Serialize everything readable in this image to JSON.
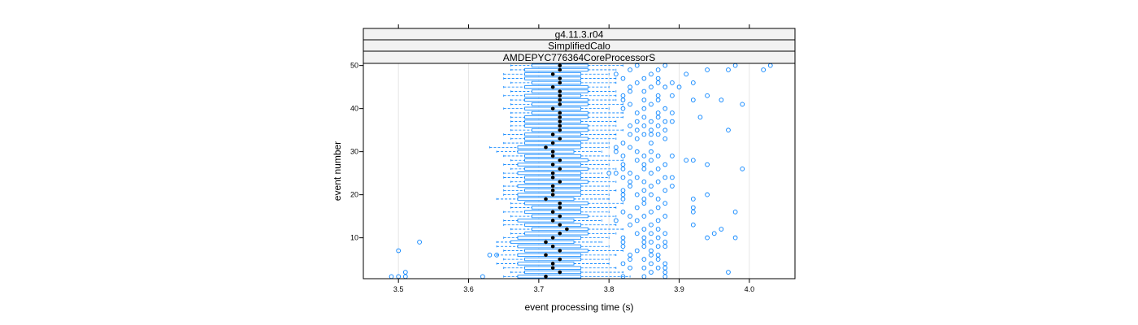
{
  "chart_data": {
    "type": "violin-boxplot",
    "strips": [
      "g4.11.3.r04",
      "SimplifiedCalo",
      "AMDEPYC776364CoreProcessorS"
    ],
    "xlabel": "event processing time (s)",
    "ylabel": "event number",
    "xlim": [
      3.45,
      4.065
    ],
    "ylim": [
      0.5,
      50.5
    ],
    "x_ticks": [
      3.5,
      3.6,
      3.7,
      3.8,
      3.9,
      4.0
    ],
    "x_tick_labels": [
      "3.5",
      "3.6",
      "3.7",
      "3.8",
      "3.9",
      "4.0"
    ],
    "y_ticks": [
      10,
      20,
      30,
      40,
      50
    ],
    "y_tick_labels": [
      "10",
      "20",
      "30",
      "40",
      "50"
    ],
    "grid": "vertical",
    "colors": {
      "box": "#0080ff",
      "whisker": "#0080ff",
      "outlier": "#0080ff",
      "median": "#000000",
      "strip_bg": "#f2f2f2"
    },
    "events": [
      {
        "event": 1,
        "median": 3.71,
        "q1": 3.67,
        "q3": 3.76,
        "whisker_low": 3.65,
        "whisker_high": 3.83,
        "outliers": [
          3.49,
          3.5,
          3.51,
          3.62,
          3.82,
          3.85,
          3.88
        ]
      },
      {
        "event": 2,
        "median": 3.73,
        "q1": 3.68,
        "q3": 3.76,
        "whisker_low": 3.66,
        "whisker_high": 3.82,
        "outliers": [
          3.51,
          3.86,
          3.88,
          3.97
        ]
      },
      {
        "event": 3,
        "median": 3.72,
        "q1": 3.68,
        "q3": 3.76,
        "whisker_low": 3.65,
        "whisker_high": 3.81,
        "outliers": [
          3.83,
          3.85,
          3.87,
          3.88
        ]
      },
      {
        "event": 4,
        "median": 3.72,
        "q1": 3.67,
        "q3": 3.75,
        "whisker_low": 3.64,
        "whisker_high": 3.8,
        "outliers": [
          3.82,
          3.86,
          3.88
        ]
      },
      {
        "event": 5,
        "median": 3.73,
        "q1": 3.68,
        "q3": 3.76,
        "whisker_low": 3.65,
        "whisker_high": 3.8,
        "outliers": [
          3.83,
          3.85,
          3.87
        ]
      },
      {
        "event": 6,
        "median": 3.71,
        "q1": 3.67,
        "q3": 3.76,
        "whisker_low": 3.64,
        "whisker_high": 3.81,
        "outliers": [
          3.63,
          3.64,
          3.83,
          3.86,
          3.87
        ]
      },
      {
        "event": 7,
        "median": 3.73,
        "q1": 3.68,
        "q3": 3.77,
        "whisker_low": 3.65,
        "whisker_high": 3.82,
        "outliers": [
          3.5,
          3.84,
          3.86
        ]
      },
      {
        "event": 8,
        "median": 3.72,
        "q1": 3.67,
        "q3": 3.76,
        "whisker_low": 3.64,
        "whisker_high": 3.8,
        "outliers": [
          3.82,
          3.85,
          3.87,
          3.88
        ]
      },
      {
        "event": 9,
        "median": 3.71,
        "q1": 3.66,
        "q3": 3.75,
        "whisker_low": 3.64,
        "whisker_high": 3.79,
        "outliers": [
          3.53,
          3.82,
          3.85,
          3.86,
          3.88
        ]
      },
      {
        "event": 10,
        "median": 3.72,
        "q1": 3.67,
        "q3": 3.76,
        "whisker_low": 3.65,
        "whisker_high": 3.8,
        "outliers": [
          3.82,
          3.85,
          3.87,
          3.94,
          3.98
        ]
      },
      {
        "event": 11,
        "median": 3.73,
        "q1": 3.68,
        "q3": 3.77,
        "whisker_low": 3.66,
        "whisker_high": 3.81,
        "outliers": [
          3.84,
          3.86,
          3.88,
          3.95
        ]
      },
      {
        "event": 12,
        "median": 3.74,
        "q1": 3.69,
        "q3": 3.77,
        "whisker_low": 3.66,
        "whisker_high": 3.82,
        "outliers": [
          3.85,
          3.87,
          3.96
        ]
      },
      {
        "event": 13,
        "median": 3.73,
        "q1": 3.68,
        "q3": 3.76,
        "whisker_low": 3.65,
        "whisker_high": 3.81,
        "outliers": [
          3.83,
          3.86,
          3.92
        ]
      },
      {
        "event": 14,
        "median": 3.72,
        "q1": 3.67,
        "q3": 3.75,
        "whisker_low": 3.65,
        "whisker_high": 3.79,
        "outliers": [
          3.81,
          3.84,
          3.87
        ]
      },
      {
        "event": 15,
        "median": 3.73,
        "q1": 3.69,
        "q3": 3.77,
        "whisker_low": 3.66,
        "whisker_high": 3.81,
        "outliers": [
          3.83,
          3.85,
          3.88
        ]
      },
      {
        "event": 16,
        "median": 3.72,
        "q1": 3.68,
        "q3": 3.76,
        "whisker_low": 3.65,
        "whisker_high": 3.8,
        "outliers": [
          3.82,
          3.86,
          3.92,
          3.98
        ]
      },
      {
        "event": 17,
        "median": 3.73,
        "q1": 3.69,
        "q3": 3.76,
        "whisker_low": 3.66,
        "whisker_high": 3.81,
        "outliers": [
          3.84,
          3.87,
          3.92
        ]
      },
      {
        "event": 18,
        "median": 3.73,
        "q1": 3.68,
        "q3": 3.77,
        "whisker_low": 3.66,
        "whisker_high": 3.82,
        "outliers": [
          3.85,
          3.88
        ]
      },
      {
        "event": 19,
        "median": 3.71,
        "q1": 3.67,
        "q3": 3.75,
        "whisker_low": 3.64,
        "whisker_high": 3.8,
        "outliers": [
          3.82,
          3.85,
          3.87,
          3.92
        ]
      },
      {
        "event": 20,
        "median": 3.72,
        "q1": 3.67,
        "q3": 3.76,
        "whisker_low": 3.65,
        "whisker_high": 3.8,
        "outliers": [
          3.82,
          3.84,
          3.86,
          3.94
        ]
      },
      {
        "event": 21,
        "median": 3.72,
        "q1": 3.68,
        "q3": 3.76,
        "whisker_low": 3.65,
        "whisker_high": 3.81,
        "outliers": [
          3.82,
          3.85,
          3.88
        ]
      },
      {
        "event": 22,
        "median": 3.72,
        "q1": 3.67,
        "q3": 3.76,
        "whisker_low": 3.65,
        "whisker_high": 3.8,
        "outliers": [
          3.83,
          3.86,
          3.89
        ]
      },
      {
        "event": 23,
        "median": 3.73,
        "q1": 3.68,
        "q3": 3.77,
        "whisker_low": 3.66,
        "whisker_high": 3.81,
        "outliers": [
          3.83,
          3.85,
          3.87
        ]
      },
      {
        "event": 24,
        "median": 3.72,
        "q1": 3.68,
        "q3": 3.76,
        "whisker_low": 3.65,
        "whisker_high": 3.8,
        "outliers": [
          3.82,
          3.84,
          3.88,
          3.89
        ]
      },
      {
        "event": 25,
        "median": 3.72,
        "q1": 3.67,
        "q3": 3.76,
        "whisker_low": 3.65,
        "whisker_high": 3.79,
        "outliers": [
          3.8,
          3.81,
          3.83,
          3.86
        ]
      },
      {
        "event": 26,
        "median": 3.73,
        "q1": 3.68,
        "q3": 3.77,
        "whisker_low": 3.66,
        "whisker_high": 3.81,
        "outliers": [
          3.82,
          3.85,
          3.87,
          3.99
        ]
      },
      {
        "event": 27,
        "median": 3.72,
        "q1": 3.67,
        "q3": 3.76,
        "whisker_low": 3.65,
        "whisker_high": 3.8,
        "outliers": [
          3.82,
          3.85,
          3.88,
          3.94
        ]
      },
      {
        "event": 28,
        "median": 3.73,
        "q1": 3.68,
        "q3": 3.77,
        "whisker_low": 3.66,
        "whisker_high": 3.82,
        "outliers": [
          3.84,
          3.86,
          3.91,
          3.92
        ]
      },
      {
        "event": 29,
        "median": 3.72,
        "q1": 3.68,
        "q3": 3.76,
        "whisker_low": 3.65,
        "whisker_high": 3.8,
        "outliers": [
          3.82,
          3.85,
          3.87,
          3.89
        ]
      },
      {
        "event": 30,
        "median": 3.72,
        "q1": 3.67,
        "q3": 3.75,
        "whisker_low": 3.64,
        "whisker_high": 3.79,
        "outliers": [
          3.81,
          3.84,
          3.86
        ]
      },
      {
        "event": 31,
        "median": 3.71,
        "q1": 3.67,
        "q3": 3.76,
        "whisker_low": 3.63,
        "whisker_high": 3.8,
        "outliers": [
          3.81,
          3.83
        ]
      },
      {
        "event": 32,
        "median": 3.72,
        "q1": 3.68,
        "q3": 3.76,
        "whisker_low": 3.65,
        "whisker_high": 3.8,
        "outliers": [
          3.82,
          3.86
        ]
      },
      {
        "event": 33,
        "median": 3.73,
        "q1": 3.68,
        "q3": 3.77,
        "whisker_low": 3.66,
        "whisker_high": 3.81,
        "outliers": [
          3.84,
          3.88
        ]
      },
      {
        "event": 34,
        "median": 3.72,
        "q1": 3.68,
        "q3": 3.76,
        "whisker_low": 3.65,
        "whisker_high": 3.81,
        "outliers": [
          3.83,
          3.85,
          3.86,
          3.87
        ]
      },
      {
        "event": 35,
        "median": 3.73,
        "q1": 3.69,
        "q3": 3.77,
        "whisker_low": 3.66,
        "whisker_high": 3.82,
        "outliers": [
          3.84,
          3.86,
          3.88,
          3.97
        ]
      },
      {
        "event": 36,
        "median": 3.73,
        "q1": 3.68,
        "q3": 3.77,
        "whisker_low": 3.66,
        "whisker_high": 3.81,
        "outliers": [
          3.83,
          3.85,
          3.87
        ]
      },
      {
        "event": 37,
        "median": 3.73,
        "q1": 3.68,
        "q3": 3.76,
        "whisker_low": 3.66,
        "whisker_high": 3.81,
        "outliers": [
          3.84,
          3.86,
          3.88,
          3.89
        ]
      },
      {
        "event": 38,
        "median": 3.73,
        "q1": 3.68,
        "q3": 3.77,
        "whisker_low": 3.66,
        "whisker_high": 3.82,
        "outliers": [
          3.85,
          3.87,
          3.93
        ]
      },
      {
        "event": 39,
        "median": 3.73,
        "q1": 3.69,
        "q3": 3.77,
        "whisker_low": 3.66,
        "whisker_high": 3.82,
        "outliers": [
          3.84,
          3.87,
          3.89
        ]
      },
      {
        "event": 40,
        "median": 3.72,
        "q1": 3.68,
        "q3": 3.76,
        "whisker_low": 3.65,
        "whisker_high": 3.8,
        "outliers": [
          3.82,
          3.85,
          3.88
        ]
      },
      {
        "event": 41,
        "median": 3.73,
        "q1": 3.69,
        "q3": 3.77,
        "whisker_low": 3.66,
        "whisker_high": 3.82,
        "outliers": [
          3.83,
          3.86,
          3.99
        ]
      },
      {
        "event": 42,
        "median": 3.73,
        "q1": 3.68,
        "q3": 3.77,
        "whisker_low": 3.66,
        "whisker_high": 3.81,
        "outliers": [
          3.82,
          3.85,
          3.87,
          3.92,
          3.96
        ]
      },
      {
        "event": 43,
        "median": 3.73,
        "q1": 3.68,
        "q3": 3.76,
        "whisker_low": 3.65,
        "whisker_high": 3.81,
        "outliers": [
          3.82,
          3.87,
          3.89,
          3.94
        ]
      },
      {
        "event": 44,
        "median": 3.73,
        "q1": 3.69,
        "q3": 3.77,
        "whisker_low": 3.66,
        "whisker_high": 3.81,
        "outliers": [
          3.83,
          3.85
        ]
      },
      {
        "event": 45,
        "median": 3.72,
        "q1": 3.68,
        "q3": 3.77,
        "whisker_low": 3.65,
        "whisker_high": 3.8,
        "outliers": [
          3.83,
          3.86,
          3.88,
          3.9
        ]
      },
      {
        "event": 46,
        "median": 3.73,
        "q1": 3.69,
        "q3": 3.76,
        "whisker_low": 3.66,
        "whisker_high": 3.81,
        "outliers": [
          3.84,
          3.87,
          3.89,
          3.92
        ]
      },
      {
        "event": 47,
        "median": 3.73,
        "q1": 3.68,
        "q3": 3.76,
        "whisker_low": 3.65,
        "whisker_high": 3.81,
        "outliers": [
          3.82,
          3.85,
          3.87
        ]
      },
      {
        "event": 48,
        "median": 3.72,
        "q1": 3.68,
        "q3": 3.76,
        "whisker_low": 3.65,
        "whisker_high": 3.8,
        "outliers": [
          3.81,
          3.86,
          3.91
        ]
      },
      {
        "event": 49,
        "median": 3.73,
        "q1": 3.68,
        "q3": 3.77,
        "whisker_low": 3.66,
        "whisker_high": 3.81,
        "outliers": [
          3.83,
          3.87,
          3.94,
          3.97,
          4.02
        ]
      },
      {
        "event": 50,
        "median": 3.73,
        "q1": 3.69,
        "q3": 3.77,
        "whisker_low": 3.66,
        "whisker_high": 3.82,
        "outliers": [
          3.84,
          3.88,
          3.98,
          4.03
        ]
      }
    ]
  }
}
